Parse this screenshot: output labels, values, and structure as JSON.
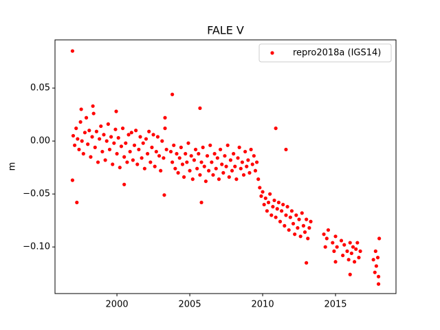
{
  "chart_data": {
    "type": "scatter",
    "title": "FALE V",
    "ylabel": "m",
    "xlim": [
      1995.75,
      2019.15
    ],
    "ylim": [
      -0.144,
      0.0955
    ],
    "xticks": [
      2000,
      2005,
      2010,
      2015
    ],
    "yticks": [
      {
        "value": -0.1,
        "label": "−0.10"
      },
      {
        "value": -0.05,
        "label": "−0.05"
      },
      {
        "value": 0,
        "label": "0.00"
      },
      0.05
    ],
    "legend": "upper right",
    "x": [
      1997.0,
      1997.1,
      1997.2,
      1997.3,
      1997.4,
      1997.5,
      1997.6,
      1997.7,
      1997.8,
      1997.9,
      1998.0,
      1998.1,
      1998.2,
      1998.3,
      1998.4,
      1998.5,
      1998.6,
      1998.7,
      1998.8,
      1998.9,
      1999.0,
      1999.1,
      1999.2,
      1999.3,
      1999.4,
      1999.5,
      1999.6,
      1999.7,
      1999.8,
      1999.9,
      2000.0,
      2000.1,
      2000.2,
      2000.3,
      2000.4,
      2000.5,
      2000.6,
      2000.7,
      2000.8,
      2000.9,
      2001.0,
      2001.1,
      2001.2,
      2001.3,
      2001.4,
      2001.5,
      2001.6,
      2001.7,
      2001.8,
      2001.9,
      2002.0,
      2002.1,
      2002.2,
      2002.3,
      2002.4,
      2002.5,
      2002.6,
      2002.7,
      2002.8,
      2002.9,
      2003.0,
      2003.1,
      2003.2,
      2003.3,
      2003.4,
      2003.7,
      2003.8,
      2003.9,
      2004.0,
      2004.1,
      2004.2,
      2004.3,
      2004.4,
      2004.5,
      2004.6,
      2004.7,
      2004.8,
      2004.9,
      2005.0,
      2005.1,
      2005.2,
      2005.3,
      2005.4,
      2005.5,
      2005.6,
      2005.7,
      2005.8,
      2005.9,
      2006.0,
      2006.1,
      2006.2,
      2006.3,
      2006.4,
      2006.5,
      2006.6,
      2006.7,
      2006.8,
      2006.9,
      2007.0,
      2007.1,
      2007.2,
      2007.3,
      2007.4,
      2007.5,
      2007.6,
      2007.7,
      2007.8,
      2007.9,
      2008.0,
      2008.1,
      2008.2,
      2008.3,
      2008.4,
      2008.5,
      2008.6,
      2008.7,
      2008.8,
      2008.9,
      2009.0,
      2009.1,
      2009.2,
      2009.3,
      2009.4,
      2009.5,
      2009.6,
      2009.7,
      2009.8,
      2009.9,
      2010.0,
      2010.1,
      2010.2,
      2010.3,
      2010.4,
      2010.5,
      2010.6,
      2010.7,
      2010.8,
      2010.9,
      2011.0,
      2011.1,
      2011.2,
      2011.3,
      2011.4,
      2011.5,
      2011.6,
      2011.7,
      2011.8,
      2011.9,
      2012.0,
      2012.1,
      2012.2,
      2012.3,
      2012.4,
      2012.5,
      2012.6,
      2012.7,
      2012.8,
      2012.9,
      2013.0,
      2013.1,
      2013.2,
      2013.3,
      2014.2,
      2014.3,
      2014.4,
      2014.5,
      2014.8,
      2014.9,
      2015.0,
      2015.1,
      2015.4,
      2015.5,
      2015.6,
      2015.8,
      2015.9,
      2016.0,
      2016.1,
      2016.2,
      2016.3,
      2016.4,
      2016.5,
      2016.6,
      2016.7,
      2017.6,
      2017.7,
      2017.75,
      2017.8,
      2017.9,
      2017.95,
      1996.95,
      1996.95,
      1997.25,
      1997.55,
      1998.35,
      1999.95,
      2000.5,
      2003.25,
      2003.3,
      2003.8,
      2005.7,
      2005.8,
      2010.9,
      2011.6,
      2013.0,
      2015.0,
      2016.0,
      2017.95,
      2018.0
    ],
    "series": [
      {
        "name": "repro2018a (IGS14)",
        "color": "#ff0000",
        "values": [
          0.005,
          -0.004,
          0.012,
          0.002,
          -0.008,
          0.018,
          0,
          -0.012,
          0.008,
          0.022,
          -0.003,
          0.01,
          -0.015,
          0.004,
          0.026,
          -0.006,
          0.009,
          -0.02,
          0.002,
          0.014,
          -0.01,
          0.006,
          -0.018,
          0,
          0.016,
          -0.008,
          0.004,
          -0.022,
          -0.002,
          0.011,
          -0.012,
          0.003,
          -0.025,
          -0.005,
          0.012,
          -0.015,
          -0.002,
          -0.02,
          0.006,
          -0.01,
          0.008,
          -0.018,
          -0.004,
          0.01,
          -0.022,
          -0.008,
          0.004,
          -0.016,
          -0.002,
          -0.026,
          0.002,
          -0.012,
          0.009,
          -0.02,
          -0.006,
          0.006,
          -0.024,
          -0.01,
          0.004,
          -0.014,
          -0.028,
          0,
          -0.016,
          0.012,
          -0.008,
          -0.01,
          -0.02,
          -0.004,
          -0.026,
          -0.012,
          -0.03,
          -0.016,
          -0.006,
          -0.022,
          -0.034,
          -0.012,
          -0.02,
          -0.002,
          -0.028,
          -0.014,
          -0.036,
          -0.018,
          -0.008,
          -0.026,
          -0.012,
          -0.032,
          -0.02,
          -0.006,
          -0.024,
          -0.038,
          -0.014,
          -0.028,
          -0.004,
          -0.02,
          -0.032,
          -0.012,
          -0.026,
          -0.016,
          -0.036,
          -0.008,
          -0.022,
          -0.03,
          -0.014,
          -0.024,
          -0.004,
          -0.034,
          -0.018,
          -0.028,
          -0.012,
          -0.024,
          -0.036,
          -0.016,
          -0.006,
          -0.026,
          -0.02,
          -0.032,
          -0.01,
          -0.024,
          -0.018,
          -0.03,
          -0.008,
          -0.022,
          -0.014,
          -0.028,
          -0.02,
          -0.036,
          -0.044,
          -0.052,
          -0.048,
          -0.06,
          -0.054,
          -0.066,
          -0.058,
          -0.05,
          -0.07,
          -0.062,
          -0.056,
          -0.072,
          -0.064,
          -0.058,
          -0.076,
          -0.066,
          -0.06,
          -0.08,
          -0.07,
          -0.062,
          -0.084,
          -0.072,
          -0.066,
          -0.078,
          -0.088,
          -0.07,
          -0.082,
          -0.074,
          -0.09,
          -0.068,
          -0.08,
          -0.086,
          -0.074,
          -0.092,
          -0.082,
          -0.076,
          -0.088,
          -0.1,
          -0.092,
          -0.084,
          -0.096,
          -0.104,
          -0.09,
          -0.1,
          -0.094,
          -0.108,
          -0.098,
          -0.104,
          -0.112,
          -0.096,
          -0.106,
          -0.1,
          -0.114,
          -0.102,
          -0.096,
          -0.11,
          -0.104,
          -0.112,
          -0.124,
          -0.104,
          -0.118,
          -0.11,
          -0.128,
          0.085,
          -0.037,
          -0.058,
          0.03,
          0.033,
          0.028,
          -0.041,
          -0.051,
          0.022,
          0.044,
          0.031,
          -0.058,
          0.012,
          -0.008,
          -0.115,
          -0.114,
          -0.126,
          -0.135,
          -0.092
        ]
      }
    ]
  }
}
